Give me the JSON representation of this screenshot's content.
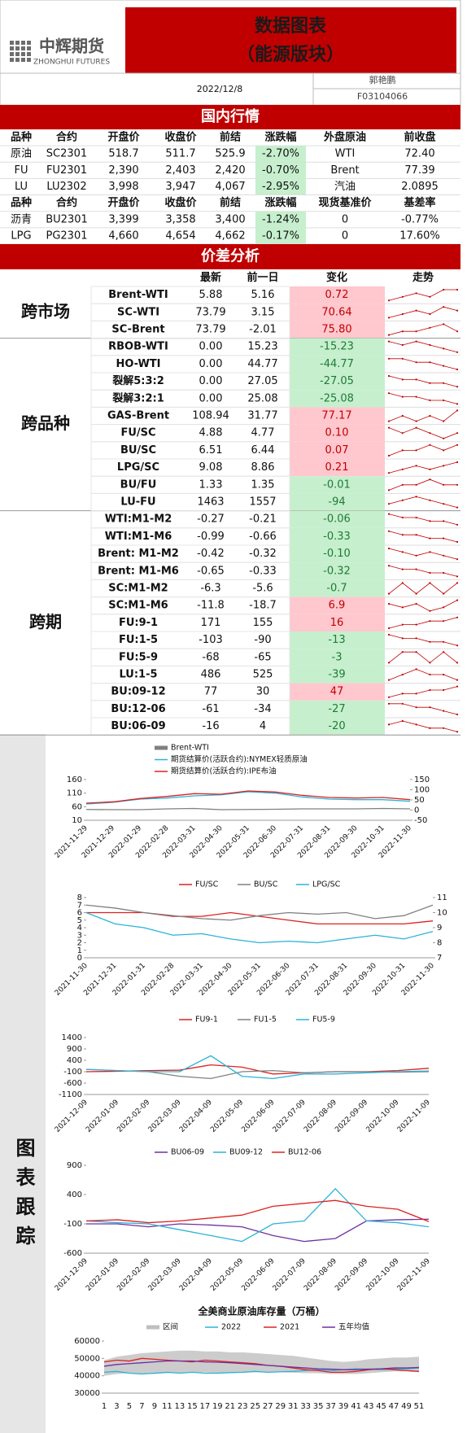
{
  "header": {
    "logo": "中辉期货",
    "logo_en": "ZHONGHUI FUTURES",
    "title": "数据图表",
    "subtitle": "（能源版块）",
    "date": "2022/12/8",
    "author": "郭艳鹏",
    "id": "F03104066"
  },
  "domestic": {
    "title": "国内行情",
    "header1": [
      "品种",
      "合约",
      "开盘价",
      "收盘价",
      "前结",
      "涨跌幅",
      "外盘原油",
      "前收盘"
    ],
    "rows1": [
      [
        "原油",
        "SC2301",
        "518.7",
        "511.7",
        "525.9",
        "-2.70%",
        "WTI",
        "72.40"
      ],
      [
        "FU",
        "FU2301",
        "2,390",
        "2,403",
        "2,420",
        "-0.70%",
        "Brent",
        "77.39"
      ],
      [
        "LU",
        "LU2302",
        "3,998",
        "3,947",
        "4,067",
        "-2.95%",
        "汽油",
        "2.0895"
      ]
    ],
    "header2": [
      "品种",
      "合约",
      "开盘价",
      "收盘价",
      "前结",
      "涨跌幅",
      "现货基准价",
      "基差率"
    ],
    "rows2": [
      [
        "沥青",
        "BU2301",
        "3,399",
        "3,358",
        "3,400",
        "-1.24%",
        "0",
        "-0.77%"
      ],
      [
        "LPG",
        "PG2301",
        "4,660",
        "4,654",
        "4,662",
        "-0.17%",
        "0",
        "17.60%"
      ]
    ]
  },
  "spread": {
    "title": "价差分析",
    "columns": [
      "最新",
      "前一日",
      "变化",
      "走势"
    ],
    "groups": [
      {
        "label": "跨市场",
        "rows": [
          {
            "name": "Brent-WTI",
            "latest": "5.88",
            "prev": "5.16",
            "change": "0.72",
            "trend": [
              3,
              4,
              5,
              4,
              6,
              6
            ]
          },
          {
            "name": "SC-WTI",
            "latest": "73.79",
            "prev": "3.15",
            "change": "70.64",
            "trend": [
              1,
              2,
              3,
              2,
              4,
              3
            ]
          },
          {
            "name": "SC-Brent",
            "latest": "73.79",
            "prev": "-2.01",
            "change": "75.80",
            "trend": [
              1,
              2,
              2,
              3,
              4,
              2
            ]
          }
        ]
      },
      {
        "label": "跨品种",
        "rows": [
          {
            "name": "RBOB-WTI",
            "latest": "0.00",
            "prev": "15.23",
            "change": "-15.23",
            "trend": [
              4,
              3,
              4,
              3,
              2,
              1
            ]
          },
          {
            "name": "HO-WTI",
            "latest": "0.00",
            "prev": "44.77",
            "change": "-44.77",
            "trend": [
              4,
              4,
              3,
              3,
              2,
              1
            ]
          },
          {
            "name": "裂解5:3:2",
            "latest": "0.00",
            "prev": "27.05",
            "change": "-27.05",
            "trend": [
              4,
              3,
              3,
              2,
              2,
              1
            ]
          },
          {
            "name": "裂解3:2:1",
            "latest": "0.00",
            "prev": "25.08",
            "change": "-25.08",
            "trend": [
              4,
              3,
              3,
              2,
              2,
              1
            ]
          },
          {
            "name": "GAS-Brent",
            "latest": "108.94",
            "prev": "31.77",
            "change": "77.17",
            "trend": [
              2,
              3,
              2,
              3,
              2,
              4
            ]
          },
          {
            "name": "FU/SC",
            "latest": "4.88",
            "prev": "4.77",
            "change": "0.10",
            "trend": [
              3,
              2,
              3,
              2,
              1,
              2
            ]
          },
          {
            "name": "BU/SC",
            "latest": "6.51",
            "prev": "6.44",
            "change": "0.07",
            "trend": [
              2,
              3,
              3,
              4,
              3,
              4
            ]
          },
          {
            "name": "LPG/SC",
            "latest": "9.08",
            "prev": "8.86",
            "change": "0.21",
            "trend": [
              1,
              2,
              3,
              2,
              3,
              4
            ]
          },
          {
            "name": "BU/FU",
            "latest": "1.33",
            "prev": "1.35",
            "change": "-0.01",
            "trend": [
              2,
              3,
              3,
              4,
              3,
              3
            ]
          },
          {
            "name": "LU-FU",
            "latest": "1463",
            "prev": "1557",
            "change": "-94",
            "trend": [
              2,
              3,
              4,
              3,
              2,
              1
            ]
          }
        ]
      },
      {
        "label": "跨期",
        "rows": [
          {
            "name": "WTI:M1-M2",
            "latest": "-0.27",
            "prev": "-0.21",
            "change": "-0.06",
            "trend": [
              4,
              3,
              3,
              2,
              2,
              1
            ]
          },
          {
            "name": "WTI:M1-M6",
            "latest": "-0.99",
            "prev": "-0.66",
            "change": "-0.33",
            "trend": [
              4,
              3,
              3,
              2,
              2,
              1
            ]
          },
          {
            "name": "Brent: M1-M2",
            "latest": "-0.42",
            "prev": "-0.32",
            "change": "-0.10",
            "trend": [
              4,
              3,
              2,
              3,
              2,
              1
            ]
          },
          {
            "name": "Brent: M1-M6",
            "latest": "-0.65",
            "prev": "-0.33",
            "change": "-0.32",
            "trend": [
              4,
              3,
              3,
              2,
              2,
              1
            ]
          },
          {
            "name": "SC:M1-M2",
            "latest": "-6.3",
            "prev": "-5.6",
            "change": "-0.7",
            "trend": [
              2,
              3,
              2,
              3,
              2,
              3
            ]
          },
          {
            "name": "SC:M1-M6",
            "latest": "-11.8",
            "prev": "-18.7",
            "change": "6.9",
            "trend": [
              3,
              2,
              3,
              1,
              2,
              4
            ]
          },
          {
            "name": "FU:9-1",
            "latest": "171",
            "prev": "155",
            "change": "16",
            "trend": [
              1,
              2,
              2,
              3,
              3,
              4
            ]
          },
          {
            "name": "FU:1-5",
            "latest": "-103",
            "prev": "-90",
            "change": "-13",
            "trend": [
              4,
              3,
              3,
              2,
              2,
              1
            ]
          },
          {
            "name": "FU:5-9",
            "latest": "-68",
            "prev": "-65",
            "change": "-3",
            "trend": [
              2,
              3,
              3,
              2,
              3,
              2
            ]
          },
          {
            "name": "LU:1-5",
            "latest": "486",
            "prev": "525",
            "change": "-39",
            "trend": [
              2,
              3,
              4,
              3,
              3,
              2
            ]
          },
          {
            "name": "BU:09-12",
            "latest": "77",
            "prev": "30",
            "change": "47",
            "trend": [
              1,
              2,
              2,
              3,
              3,
              4
            ]
          },
          {
            "name": "BU:12-06",
            "latest": "-61",
            "prev": "-34",
            "change": "-27",
            "trend": [
              4,
              4,
              3,
              3,
              2,
              1
            ]
          },
          {
            "name": "BU:06-09",
            "latest": "-16",
            "prev": "4",
            "change": "-20",
            "trend": [
              3,
              4,
              3,
              2,
              2,
              1
            ]
          }
        ]
      }
    ]
  },
  "tracking": {
    "label": "图表跟踪"
  },
  "chart_data": [
    {
      "type": "line",
      "categories": [
        "2021-11-29",
        "2021-12-29",
        "2022-01-29",
        "2022-02-28",
        "2022-03-31",
        "2022-04-30",
        "2022-05-31",
        "2022-06-30",
        "2022-07-31",
        "2022-08-31",
        "2022-09-30",
        "2022-10-31",
        "2022-11-30"
      ],
      "ylim": [
        10,
        160
      ],
      "yticks": [
        10,
        60,
        110,
        160
      ],
      "y2lim": [
        -50,
        150
      ],
      "y2ticks": [
        -50,
        0,
        50,
        100,
        150
      ],
      "series": [
        {
          "name": "Brent-WTI",
          "color": "#808080",
          "axis": "y2",
          "values": [
            3,
            2,
            2,
            6,
            8,
            2,
            3,
            4,
            6,
            6,
            6,
            8,
            6
          ]
        },
        {
          "name": "期货结算价(活跃合约):NYMEX轻质原油",
          "color": "#2bb3d8",
          "values": [
            70,
            76,
            88,
            92,
            100,
            104,
            115,
            110,
            96,
            88,
            86,
            86,
            80
          ]
        },
        {
          "name": "期货结算价(活跃合约):IPE布油",
          "color": "#e02020",
          "values": [
            73,
            78,
            90,
            98,
            108,
            106,
            118,
            114,
            102,
            94,
            92,
            94,
            86
          ]
        }
      ]
    },
    {
      "type": "line",
      "categories": [
        "2021-11-30",
        "2021-12-31",
        "2022-01-31",
        "2022-02-28",
        "2022-03-31",
        "2022-04-30",
        "2022-05-31",
        "2022-06-30",
        "2022-07-31",
        "2022-08-31",
        "2022-09-30",
        "2022-10-31",
        "2022-11-30"
      ],
      "ylim": [
        0,
        8
      ],
      "yticks": [
        0,
        1,
        2,
        3,
        4,
        5,
        6,
        7,
        8
      ],
      "y2lim": [
        7,
        11
      ],
      "y2ticks": [
        7,
        8,
        9,
        10,
        11
      ],
      "series": [
        {
          "name": "FU/SC",
          "color": "#e02020",
          "values": [
            6,
            6,
            6,
            5.5,
            5.5,
            6,
            5.5,
            5,
            4.5,
            4.5,
            4.5,
            4.5,
            4.9
          ]
        },
        {
          "name": "BU/SC",
          "color": "#808080",
          "axis": "y2",
          "values": [
            10.5,
            10.3,
            10,
            9.8,
            9.6,
            9.5,
            9.8,
            10,
            9.9,
            10,
            9.6,
            9.8,
            10.5
          ]
        },
        {
          "name": "LPG/SC",
          "color": "#2bb3d8",
          "values": [
            6,
            4.5,
            4,
            3,
            3.2,
            2.5,
            2,
            2.2,
            2,
            2.5,
            3,
            2.5,
            3.5
          ]
        }
      ]
    },
    {
      "type": "line",
      "categories": [
        "2021-12-09",
        "2022-01-09",
        "2022-02-09",
        "2022-03-09",
        "2022-04-09",
        "2022-05-09",
        "2022-06-09",
        "2022-07-09",
        "2022-08-09",
        "2022-09-09",
        "2022-10-09",
        "2022-11-09"
      ],
      "ylim": [
        -1100,
        1400
      ],
      "yticks": [
        -1100,
        -600,
        -100,
        400,
        900,
        1400
      ],
      "series": [
        {
          "name": "FU9-1",
          "color": "#e02020",
          "values": [
            -100,
            -80,
            -50,
            -30,
            200,
            100,
            -200,
            -150,
            -100,
            -100,
            -50,
            50
          ]
        },
        {
          "name": "FU1-5",
          "color": "#808080",
          "values": [
            0,
            -50,
            -100,
            -300,
            -400,
            -100,
            -50,
            -150,
            -100,
            -100,
            -120,
            -100
          ]
        },
        {
          "name": "FU5-9",
          "color": "#2bb3d8",
          "values": [
            0,
            -50,
            -100,
            -100,
            600,
            -300,
            -400,
            -200,
            -200,
            -150,
            -100,
            -70
          ]
        }
      ]
    },
    {
      "type": "line",
      "categories": [
        "2021-12-09",
        "2022-01-09",
        "2022-02-09",
        "2022-03-09",
        "2022-04-09",
        "2022-05-09",
        "2022-06-09",
        "2022-07-09",
        "2022-08-09",
        "2022-09-09",
        "2022-10-09",
        "2022-11-09"
      ],
      "ylim": [
        -600,
        900
      ],
      "yticks": [
        -600,
        -100,
        400,
        900
      ],
      "series": [
        {
          "name": "BU06-09",
          "color": "#7030a0",
          "values": [
            -100,
            -100,
            -150,
            -100,
            -120,
            -150,
            -300,
            -400,
            -350,
            -50,
            -30,
            -20
          ]
        },
        {
          "name": "BU09-12",
          "color": "#2bb3d8",
          "values": [
            -50,
            -80,
            -100,
            -200,
            -300,
            -400,
            -100,
            -50,
            500,
            -50,
            -80,
            -150
          ]
        },
        {
          "name": "BU12-06",
          "color": "#e02020",
          "values": [
            -50,
            -30,
            -80,
            -50,
            0,
            50,
            200,
            250,
            300,
            200,
            150,
            -60
          ]
        }
      ]
    },
    {
      "type": "band-line",
      "title": "全美商业原油库存量（万桶）",
      "categories": [
        "1",
        "3",
        "5",
        "7",
        "9",
        "11",
        "13",
        "15",
        "17",
        "19",
        "21",
        "23",
        "25",
        "27",
        "29",
        "31",
        "33",
        "35",
        "37",
        "39",
        "41",
        "43",
        "45",
        "47",
        "49",
        "51"
      ],
      "ylim": [
        30000,
        60000
      ],
      "yticks": [
        30000,
        40000,
        50000,
        60000
      ],
      "band": {
        "name": "区间",
        "color": "#bfbfbf",
        "high": [
          49000,
          51000,
          52000,
          53000,
          53500,
          54000,
          54500,
          54500,
          54000,
          54000,
          53500,
          53500,
          53000,
          52500,
          52000,
          51500,
          50500,
          49500,
          48500,
          48000,
          48500,
          49500,
          50000,
          50500,
          50500,
          51000
        ],
        "low": [
          40000,
          41000,
          41500,
          41000,
          41000,
          41500,
          41500,
          42000,
          42000,
          41500,
          41500,
          41800,
          42000,
          42000,
          42000,
          41800,
          41500,
          41500,
          41000,
          41000,
          41000,
          41500,
          42000,
          42500,
          42500,
          42000
        ]
      },
      "series": [
        {
          "name": "2022",
          "color": "#2bb3d8",
          "values": [
            42000,
            42500,
            41500,
            41000,
            41500,
            42000,
            41500,
            42000,
            41500,
            41500,
            41800,
            42000,
            42500,
            42000,
            42300,
            42500,
            43000,
            43500,
            43000,
            43500,
            44000,
            43800,
            43500,
            44000,
            44000,
            44500
          ]
        },
        {
          "name": "2021",
          "color": "#e02020",
          "values": [
            48000,
            49000,
            48500,
            50000,
            49500,
            49000,
            48500,
            48000,
            49000,
            48500,
            48000,
            47500,
            47000,
            46000,
            45500,
            44500,
            43500,
            43000,
            42000,
            42000,
            42500,
            43500,
            44000,
            43500,
            43000,
            42500
          ]
        },
        {
          "name": "五年均值",
          "color": "#7030a0",
          "values": [
            45500,
            46500,
            47000,
            47500,
            48000,
            48500,
            48500,
            48500,
            48000,
            47800,
            47500,
            47000,
            46500,
            46000,
            45500,
            45000,
            44500,
            44000,
            43800,
            43500,
            43500,
            43800,
            44000,
            44500,
            44500,
            44800
          ]
        }
      ]
    }
  ]
}
